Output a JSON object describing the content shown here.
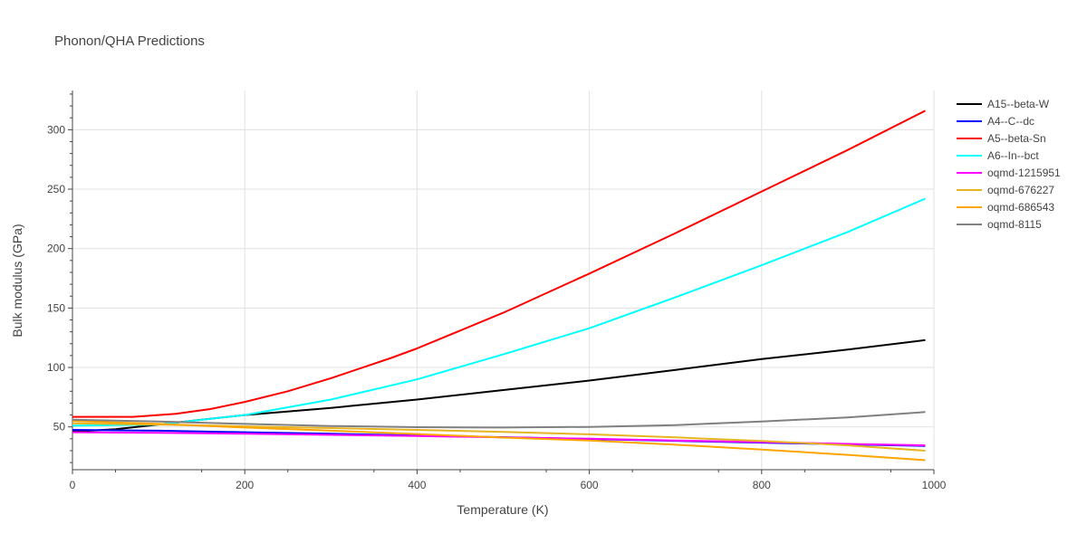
{
  "chart_data": {
    "type": "line",
    "title": "Phonon/QHA Predictions",
    "xlabel": "Temperature (K)",
    "ylabel": "Bulk modulus (GPa)",
    "xlim": [
      0,
      1000
    ],
    "ylim": [
      14,
      333
    ],
    "xticks": [
      0,
      200,
      400,
      600,
      800,
      1000
    ],
    "yticks": [
      50,
      100,
      150,
      200,
      250,
      300
    ],
    "grid": true,
    "legend_position": "top-right",
    "series": [
      {
        "name": "A15--beta-W",
        "color": "#000000",
        "x": [
          0,
          50,
          100,
          150,
          200,
          300,
          400,
          500,
          600,
          700,
          800,
          900,
          990
        ],
        "y": [
          46,
          48,
          52,
          56,
          60,
          66,
          73,
          81,
          89,
          98,
          107,
          115,
          123
        ]
      },
      {
        "name": "A4--C--dc",
        "color": "#0000ff",
        "x": [
          0,
          100,
          200,
          300,
          400,
          500,
          600,
          700,
          800,
          900,
          990
        ],
        "y": [
          47.5,
          46.8,
          45.5,
          44.2,
          42.8,
          41.3,
          39.8,
          38.3,
          36.8,
          35.3,
          34
        ]
      },
      {
        "name": "A5--beta-Sn",
        "color": "#ff0000",
        "x": [
          0,
          70,
          120,
          160,
          200,
          250,
          300,
          370,
          400,
          500,
          600,
          700,
          800,
          900,
          990
        ],
        "y": [
          58.5,
          58.5,
          61,
          65,
          71,
          80,
          91,
          108,
          116,
          146,
          179,
          213,
          248,
          283,
          316
        ]
      },
      {
        "name": "A6--In--bct",
        "color": "#00ffff",
        "x": [
          0,
          100,
          200,
          300,
          400,
          500,
          600,
          700,
          800,
          900,
          990
        ],
        "y": [
          51,
          52,
          60,
          73,
          90,
          111,
          133,
          159,
          186,
          214,
          242
        ]
      },
      {
        "name": "oqmd-1215951",
        "color": "#ff00ff",
        "x": [
          0,
          100,
          200,
          300,
          400,
          500,
          600,
          700,
          800,
          900,
          990
        ],
        "y": [
          45.5,
          45,
          44.2,
          43.3,
          42.3,
          41.2,
          40,
          38.6,
          37.2,
          35.7,
          34.5
        ]
      },
      {
        "name": "oqmd-676227",
        "color": "#e6b422",
        "x": [
          0,
          100,
          200,
          300,
          400,
          500,
          600,
          700,
          800,
          900,
          990
        ],
        "y": [
          53,
          52,
          50.5,
          49,
          47.5,
          45.8,
          43.8,
          41.2,
          38.2,
          34.5,
          30
        ]
      },
      {
        "name": "oqmd-686543",
        "color": "#ffa500",
        "x": [
          0,
          100,
          200,
          300,
          400,
          500,
          600,
          700,
          800,
          900,
          990
        ],
        "y": [
          55,
          52.5,
          49.5,
          46.8,
          44,
          41,
          38.5,
          35,
          31,
          26.5,
          22
        ]
      },
      {
        "name": "oqmd-8115",
        "color": "#808080",
        "x": [
          0,
          100,
          200,
          300,
          400,
          500,
          600,
          700,
          800,
          900,
          990
        ],
        "y": [
          56,
          54.5,
          52.5,
          50.8,
          49.8,
          49.5,
          50,
          51.5,
          54.5,
          58,
          62.5
        ]
      }
    ]
  }
}
